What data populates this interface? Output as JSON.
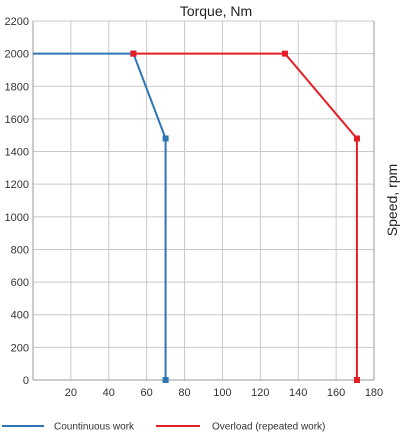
{
  "chart_data": {
    "type": "line",
    "xlabel": "Torque, Nm",
    "ylabel": "Speed, rpm",
    "xlim": [
      0,
      180
    ],
    "ylim": [
      0,
      2200
    ],
    "x_ticks": [
      "20",
      "40",
      "60",
      "80",
      "100",
      "120",
      "140",
      "160",
      "180"
    ],
    "y_ticks": [
      "0",
      "200",
      "400",
      "600",
      "800",
      "1000",
      "1200",
      "1400",
      "1600",
      "1800",
      "2000",
      "2200"
    ],
    "grid": true,
    "legend_position": "bottom",
    "series": [
      {
        "name": "Countinuous work",
        "color": "#2e75b6",
        "points": [
          {
            "x": 0,
            "y": 2000
          },
          {
            "x": 53,
            "y": 2000
          },
          {
            "x": 70,
            "y": 1480
          },
          {
            "x": 70,
            "y": 0
          }
        ]
      },
      {
        "name": "Overload (repeated work)",
        "color": "#e31e24",
        "points": [
          {
            "x": 53,
            "y": 2000
          },
          {
            "x": 133,
            "y": 2000
          },
          {
            "x": 171,
            "y": 1480
          },
          {
            "x": 171,
            "y": 0
          }
        ]
      }
    ]
  }
}
